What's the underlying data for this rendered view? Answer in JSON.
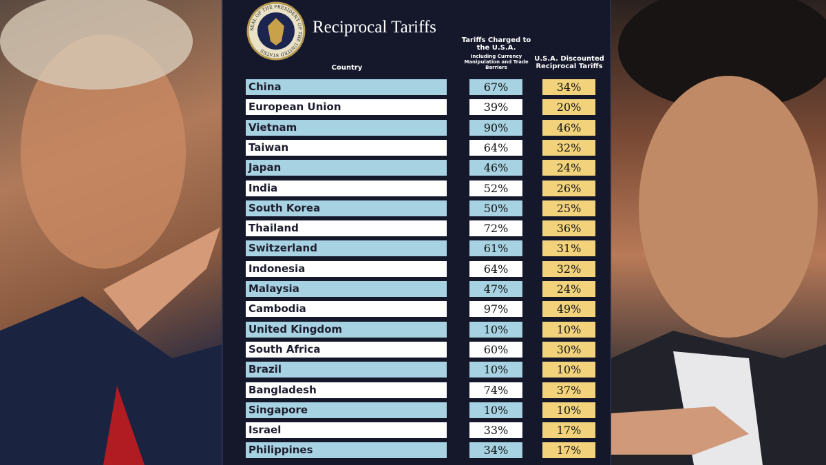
{
  "header": {
    "title": "Reciprocal Tariffs",
    "seal_text": "SEAL OF THE PRESIDENT OF THE UNITED STATES"
  },
  "table": {
    "columns": [
      "Country",
      "Tariffs Charged to the U.S.A.",
      "U.S.A. Discounted Reciprocal Tariffs"
    ],
    "column_note": "Including Currency Manipulation and Trade Barriers",
    "rows": [
      [
        "China",
        "67%",
        "34%"
      ],
      [
        "European Union",
        "39%",
        "20%"
      ],
      [
        "Vietnam",
        "90%",
        "46%"
      ],
      [
        "Taiwan",
        "64%",
        "32%"
      ],
      [
        "Japan",
        "46%",
        "24%"
      ],
      [
        "India",
        "52%",
        "26%"
      ],
      [
        "South Korea",
        "50%",
        "25%"
      ],
      [
        "Thailand",
        "72%",
        "36%"
      ],
      [
        "Switzerland",
        "61%",
        "31%"
      ],
      [
        "Indonesia",
        "64%",
        "32%"
      ],
      [
        "Malaysia",
        "47%",
        "24%"
      ],
      [
        "Cambodia",
        "97%",
        "49%"
      ],
      [
        "United Kingdom",
        "10%",
        "10%"
      ],
      [
        "South Africa",
        "60%",
        "30%"
      ],
      [
        "Brazil",
        "10%",
        "10%"
      ],
      [
        "Bangladesh",
        "74%",
        "37%"
      ],
      [
        "Singapore",
        "10%",
        "10%"
      ],
      [
        "Israel",
        "33%",
        "17%"
      ],
      [
        "Philippines",
        "34%",
        "17%"
      ]
    ]
  }
}
